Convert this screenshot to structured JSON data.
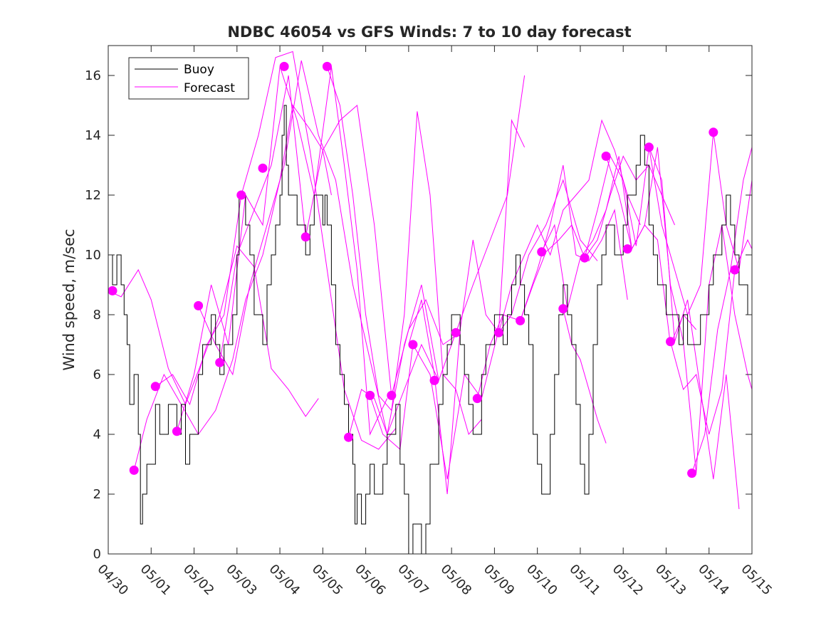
{
  "chart_data": {
    "type": "line",
    "title": "NDBC 46054 vs GFS Winds: 7 to 10 day forecast",
    "xlabel": "",
    "ylabel": "Wind speed, m/sec",
    "x_ticks": [
      "04/30",
      "05/01",
      "05/02",
      "05/03",
      "05/04",
      "05/05",
      "05/06",
      "05/07",
      "05/08",
      "05/09",
      "05/10",
      "05/11",
      "05/12",
      "05/13",
      "05/14",
      "05/15"
    ],
    "xlim_days": [
      0,
      15
    ],
    "ylim": [
      0,
      17
    ],
    "y_ticks": [
      0,
      2,
      4,
      6,
      8,
      10,
      12,
      14,
      16
    ],
    "grid": false,
    "legend_position": "top-left",
    "legend": [
      {
        "label": "Buoy",
        "color": "#000000"
      },
      {
        "label": "Forecast",
        "color": "#ff00ff"
      }
    ],
    "colors": {
      "buoy": "#000000",
      "forecast": "#ff00ff"
    },
    "series": [
      {
        "name": "Buoy",
        "x_days": [
          0.0,
          0.1,
          0.2,
          0.3,
          0.37,
          0.44,
          0.5,
          0.6,
          0.7,
          0.75,
          0.8,
          0.9,
          1.0,
          1.1,
          1.2,
          1.3,
          1.4,
          1.5,
          1.6,
          1.7,
          1.8,
          1.9,
          2.0,
          2.1,
          2.2,
          2.3,
          2.4,
          2.5,
          2.6,
          2.7,
          2.8,
          2.9,
          3.0,
          3.05,
          3.1,
          3.2,
          3.3,
          3.4,
          3.5,
          3.6,
          3.7,
          3.8,
          3.9,
          4.0,
          4.05,
          4.1,
          4.15,
          4.2,
          4.3,
          4.4,
          4.5,
          4.6,
          4.7,
          4.8,
          4.9,
          5.0,
          5.05,
          5.1,
          5.2,
          5.3,
          5.4,
          5.5,
          5.6,
          5.7,
          5.75,
          5.8,
          5.9,
          6.0,
          6.1,
          6.2,
          6.3,
          6.4,
          6.5,
          6.6,
          6.7,
          6.8,
          6.9,
          7.0,
          7.1,
          7.2,
          7.3,
          7.4,
          7.5,
          7.6,
          7.7,
          7.8,
          7.9,
          8.0,
          8.1,
          8.2,
          8.3,
          8.4,
          8.5,
          8.6,
          8.7,
          8.8,
          8.9,
          9.0,
          9.1,
          9.2,
          9.3,
          9.4,
          9.5,
          9.6,
          9.7,
          9.8,
          9.9,
          10.0,
          10.1,
          10.2,
          10.3,
          10.4,
          10.5,
          10.6,
          10.7,
          10.8,
          10.9,
          11.0,
          11.1,
          11.2,
          11.3,
          11.4,
          11.5,
          11.6,
          11.7,
          11.8,
          11.9,
          12.0,
          12.1,
          12.2,
          12.3,
          12.4,
          12.5,
          12.6,
          12.7,
          12.8,
          12.9,
          13.0,
          13.1,
          13.2,
          13.3,
          13.4,
          13.5,
          13.6,
          13.7,
          13.8,
          13.9,
          14.0,
          14.1,
          14.2,
          14.3,
          14.4,
          14.5,
          14.6,
          14.7,
          14.8,
          14.9,
          15.0
        ],
        "values": [
          10,
          9,
          10,
          9,
          8,
          7,
          5,
          6,
          4,
          1,
          2,
          3,
          3,
          5,
          4,
          4,
          5,
          5,
          4,
          5,
          3,
          4,
          4,
          6,
          7,
          7,
          8,
          7,
          6,
          7,
          7,
          8,
          10,
          12,
          12,
          11,
          10,
          8,
          8,
          7,
          9,
          10,
          11,
          12,
          14,
          15,
          13,
          12,
          12,
          11,
          11,
          10,
          11,
          12,
          12,
          11,
          12,
          11,
          9,
          7,
          6,
          5,
          4,
          3,
          1,
          2,
          1,
          2,
          3,
          2,
          2,
          3,
          4,
          4,
          5,
          3,
          2,
          0,
          1,
          1,
          0,
          1,
          3,
          3,
          5,
          6,
          7,
          8,
          8,
          7,
          6,
          5,
          4,
          4,
          6,
          7,
          7,
          8,
          8,
          7,
          8,
          9,
          10,
          9,
          8,
          7,
          4,
          3,
          2,
          2,
          4,
          6,
          8,
          9,
          8,
          7,
          5,
          3,
          2,
          4,
          7,
          9,
          10,
          11,
          11,
          10,
          10,
          11,
          12,
          12,
          13,
          14,
          13,
          11,
          10,
          9,
          9,
          8,
          8,
          8,
          7,
          8,
          7,
          7,
          7,
          8,
          8,
          9,
          10,
          10,
          11,
          12,
          11,
          10,
          9,
          9,
          8,
          8
        ]
      },
      {
        "name": "Forecast",
        "x_days": [
          0.0,
          0.3,
          0.7,
          1.0,
          1.4,
          1.8,
          2.2,
          2.6,
          3.0,
          3.4,
          3.8,
          4.2,
          4.6,
          4.9
        ],
        "values": [
          8.8,
          8.6,
          9.5,
          8.5,
          6.2,
          5.0,
          6.5,
          8.0,
          10.3,
          9.6,
          6.2,
          5.5,
          4.6,
          5.2
        ]
      },
      {
        "name": "",
        "x_days": [
          0.6,
          0.9,
          1.3,
          1.7,
          2.1,
          2.5,
          2.9,
          3.2,
          3.6,
          4.0,
          4.3,
          4.7,
          5.0,
          5.2
        ],
        "values": [
          2.8,
          4.5,
          6.0,
          5.0,
          4.0,
          4.8,
          6.5,
          8.5,
          10.0,
          12.5,
          15.0,
          14.2,
          13.5,
          12.0
        ]
      },
      {
        "name": "",
        "x_days": [
          1.1,
          1.5,
          1.9,
          2.3,
          2.7,
          3.1,
          3.5,
          3.9,
          4.3,
          4.7,
          5.1,
          5.5,
          5.9,
          6.3,
          6.7
        ],
        "values": [
          5.6,
          6.0,
          5.0,
          7.0,
          8.0,
          12.0,
          14.0,
          16.6,
          16.8,
          13.5,
          9.5,
          5.5,
          3.8,
          3.5,
          4.2
        ]
      },
      {
        "name": "",
        "x_days": [
          1.6,
          2.0,
          2.4,
          2.8,
          3.2,
          3.6,
          4.0,
          4.4,
          4.8,
          5.2,
          5.5,
          5.8,
          6.1,
          6.5
        ],
        "values": [
          4.1,
          6.0,
          9.0,
          7.0,
          12.0,
          11.0,
          16.3,
          14.5,
          12.0,
          16.3,
          13.0,
          9.5,
          4.0,
          5.2
        ]
      },
      {
        "name": "",
        "x_days": [
          2.1,
          2.5,
          2.9,
          3.3,
          3.7,
          4.1,
          4.5,
          4.9,
          5.3,
          5.7,
          6.1,
          6.5,
          6.9,
          7.3,
          7.7
        ],
        "values": [
          8.3,
          7.0,
          6.0,
          9.0,
          11.0,
          13.0,
          16.5,
          14.0,
          12.5,
          9.0,
          6.5,
          4.0,
          5.5,
          7.0,
          5.8
        ]
      },
      {
        "name": "",
        "x_days": [
          2.6,
          3.0,
          3.4,
          3.8,
          4.2,
          4.6,
          5.0,
          5.4,
          5.8,
          6.2,
          6.6,
          7.0,
          7.4,
          7.8,
          8.2
        ],
        "values": [
          6.4,
          10.0,
          11.5,
          13.0,
          16.0,
          10.6,
          13.5,
          14.5,
          15.0,
          11.0,
          5.3,
          7.5,
          8.5,
          7.0,
          7.4
        ]
      },
      {
        "name": "",
        "x_days": [
          5.1,
          5.4,
          5.7,
          6.0,
          6.3,
          6.6,
          6.9,
          7.2,
          7.5,
          7.8,
          8.1,
          8.4,
          8.7
        ],
        "values": [
          16.3,
          15.0,
          12.0,
          8.0,
          5.3,
          4.8,
          8.0,
          14.8,
          12.0,
          6.0,
          5.5,
          4.0,
          4.5
        ]
      },
      {
        "name": "",
        "x_days": [
          5.6,
          5.9,
          6.2,
          6.5,
          6.9,
          7.3,
          7.7,
          8.1,
          8.5,
          8.9,
          9.3,
          9.7
        ],
        "values": [
          3.9,
          5.5,
          5.2,
          4.0,
          7.0,
          9.0,
          5.8,
          7.4,
          9.0,
          10.5,
          12.0,
          16.0
        ]
      },
      {
        "name": "",
        "x_days": [
          6.1,
          6.4,
          6.8,
          7.1,
          7.5,
          7.9,
          8.3,
          8.7,
          9.1,
          9.4,
          9.7
        ],
        "values": [
          5.3,
          4.0,
          3.5,
          7.0,
          6.0,
          2.5,
          6.0,
          5.2,
          7.5,
          14.5,
          13.6
        ]
      },
      {
        "name": "",
        "x_days": [
          7.0,
          7.3,
          7.6,
          7.9,
          8.2,
          8.5,
          8.8,
          9.1,
          9.4,
          9.8,
          10.2,
          10.6,
          11.0,
          11.4
        ],
        "values": [
          7.0,
          8.5,
          6.0,
          2.0,
          7.5,
          10.5,
          8.0,
          7.4,
          8.0,
          10.0,
          11.0,
          12.5,
          10.5,
          9.8
        ]
      },
      {
        "name": "",
        "x_days": [
          8.6,
          8.9,
          9.2,
          9.6,
          10.0,
          10.3,
          10.6,
          10.9,
          11.2,
          11.5,
          11.8,
          12.1
        ],
        "values": [
          5.2,
          7.0,
          8.0,
          7.8,
          9.5,
          11.0,
          13.0,
          10.0,
          9.8,
          10.5,
          11.5,
          8.5
        ]
      },
      {
        "name": "",
        "x_days": [
          9.1,
          9.4,
          9.7,
          10.0,
          10.3,
          10.6,
          10.9,
          11.2,
          11.5,
          11.8,
          12.1,
          12.4
        ],
        "values": [
          7.4,
          9.0,
          10.0,
          11.0,
          10.0,
          11.5,
          12.0,
          12.5,
          14.5,
          13.5,
          12.0,
          11.0
        ]
      },
      {
        "name": "",
        "x_days": [
          9.6,
          9.9,
          10.2,
          10.5,
          10.8,
          11.1,
          11.4,
          11.7,
          12.0,
          12.3,
          12.6,
          12.9,
          13.2
        ],
        "values": [
          7.8,
          9.0,
          10.1,
          10.5,
          11.0,
          9.9,
          10.5,
          12.0,
          13.3,
          12.5,
          13.0,
          12.0,
          11.0
        ]
      },
      {
        "name": "",
        "x_days": [
          10.1,
          10.4,
          10.7,
          11.0,
          11.3,
          11.6,
          11.9,
          12.2,
          12.5,
          12.8,
          13.1,
          13.4,
          13.7
        ],
        "values": [
          10.1,
          11.0,
          8.2,
          9.9,
          10.5,
          11.5,
          13.3,
          10.2,
          11.0,
          10.5,
          7.0,
          8.0,
          7.5
        ]
      },
      {
        "name": "",
        "x_days": [
          10.6,
          10.8,
          11.0,
          11.2,
          11.4,
          11.6
        ],
        "values": [
          8.2,
          7.0,
          6.5,
          5.5,
          4.5,
          3.7
        ]
      },
      {
        "name": "",
        "x_days": [
          11.1,
          11.4,
          11.7,
          12.0,
          12.3,
          12.6,
          12.9,
          13.2,
          13.5,
          13.8,
          14.1,
          14.4,
          14.7
        ],
        "values": [
          9.9,
          11.5,
          13.3,
          12.5,
          10.3,
          13.6,
          12.5,
          7.1,
          8.5,
          5.5,
          2.5,
          6.0,
          1.5
        ]
      },
      {
        "name": "",
        "x_days": [
          11.6,
          11.9,
          12.2,
          12.5,
          12.8,
          13.1,
          13.4,
          13.7,
          14.0,
          14.3,
          14.6,
          14.9,
          15.0
        ],
        "values": [
          13.3,
          12.0,
          10.2,
          11.0,
          13.6,
          9.0,
          7.1,
          2.7,
          9.0,
          11.0,
          8.0,
          6.0,
          5.5
        ]
      },
      {
        "name": "",
        "x_days": [
          12.6,
          12.9,
          13.2,
          13.5,
          13.8,
          14.1,
          14.4,
          14.7,
          15.0
        ],
        "values": [
          13.6,
          11.0,
          9.5,
          8.0,
          9.0,
          14.1,
          11.0,
          9.5,
          12.5
        ]
      },
      {
        "name": "",
        "x_days": [
          13.1,
          13.4,
          13.7,
          14.0,
          14.3,
          14.6,
          14.9,
          15.0
        ],
        "values": [
          7.1,
          5.5,
          6.0,
          4.0,
          5.5,
          9.5,
          10.5,
          10.2
        ]
      },
      {
        "name": "",
        "x_days": [
          13.6,
          13.9,
          14.2,
          14.5,
          14.8,
          15.0
        ],
        "values": [
          2.7,
          4.0,
          7.5,
          9.5,
          12.5,
          13.6
        ]
      }
    ],
    "forecast_markers": {
      "x_days": [
        0.1,
        0.6,
        1.1,
        1.6,
        2.1,
        2.6,
        3.1,
        3.6,
        4.1,
        4.6,
        5.1,
        5.6,
        6.1,
        6.6,
        7.1,
        7.6,
        8.1,
        8.6,
        9.1,
        9.6,
        10.1,
        10.6,
        11.1,
        11.6,
        12.1,
        12.6,
        13.1,
        13.6,
        14.1,
        14.6
      ],
      "values": [
        8.8,
        2.8,
        5.6,
        4.1,
        8.3,
        6.4,
        12.0,
        12.9,
        16.3,
        10.6,
        16.3,
        3.9,
        5.3,
        5.3,
        7.0,
        5.8,
        7.4,
        5.2,
        7.4,
        7.8,
        10.1,
        8.2,
        9.9,
        13.3,
        10.2,
        13.6,
        7.1,
        2.7,
        14.1,
        9.5
      ]
    }
  }
}
